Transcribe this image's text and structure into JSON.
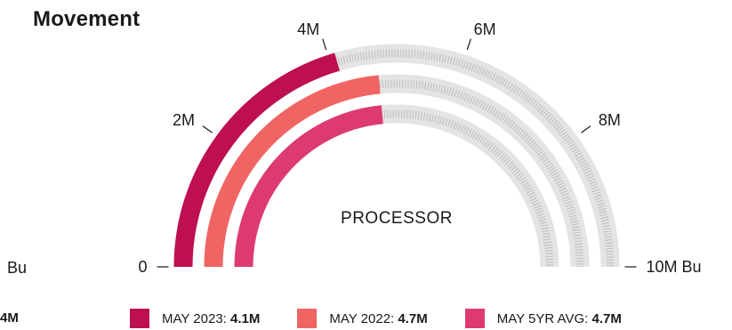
{
  "header": {
    "title": "Movement"
  },
  "clipped_left": {
    "unit_text": "Bu",
    "value_text": "4M"
  },
  "chart_data": {
    "type": "radial-bar",
    "title": "Movement",
    "center_label": "PROCESSOR",
    "range": [
      0,
      10000000
    ],
    "unit": "Bu",
    "ticks": [
      {
        "value": 0,
        "label": "0"
      },
      {
        "value": 2000000,
        "label": "2M"
      },
      {
        "value": 4000000,
        "label": "4M"
      },
      {
        "value": 6000000,
        "label": "6M"
      },
      {
        "value": 8000000,
        "label": "8M"
      },
      {
        "value": 10000000,
        "label": "10M Bu"
      }
    ],
    "series": [
      {
        "name": "MAY 2023",
        "value": 4100000,
        "value_label": "4.1M",
        "color": "#be0f51"
      },
      {
        "name": "MAY 2022",
        "value": 4700000,
        "value_label": "4.7M",
        "color": "#f06563"
      },
      {
        "name": "MAY 5YR AVG",
        "value": 4700000,
        "value_label": "4.7M",
        "color": "#dd3a74"
      }
    ],
    "track_color": "#e4e4e4",
    "legend_position": "bottom"
  }
}
